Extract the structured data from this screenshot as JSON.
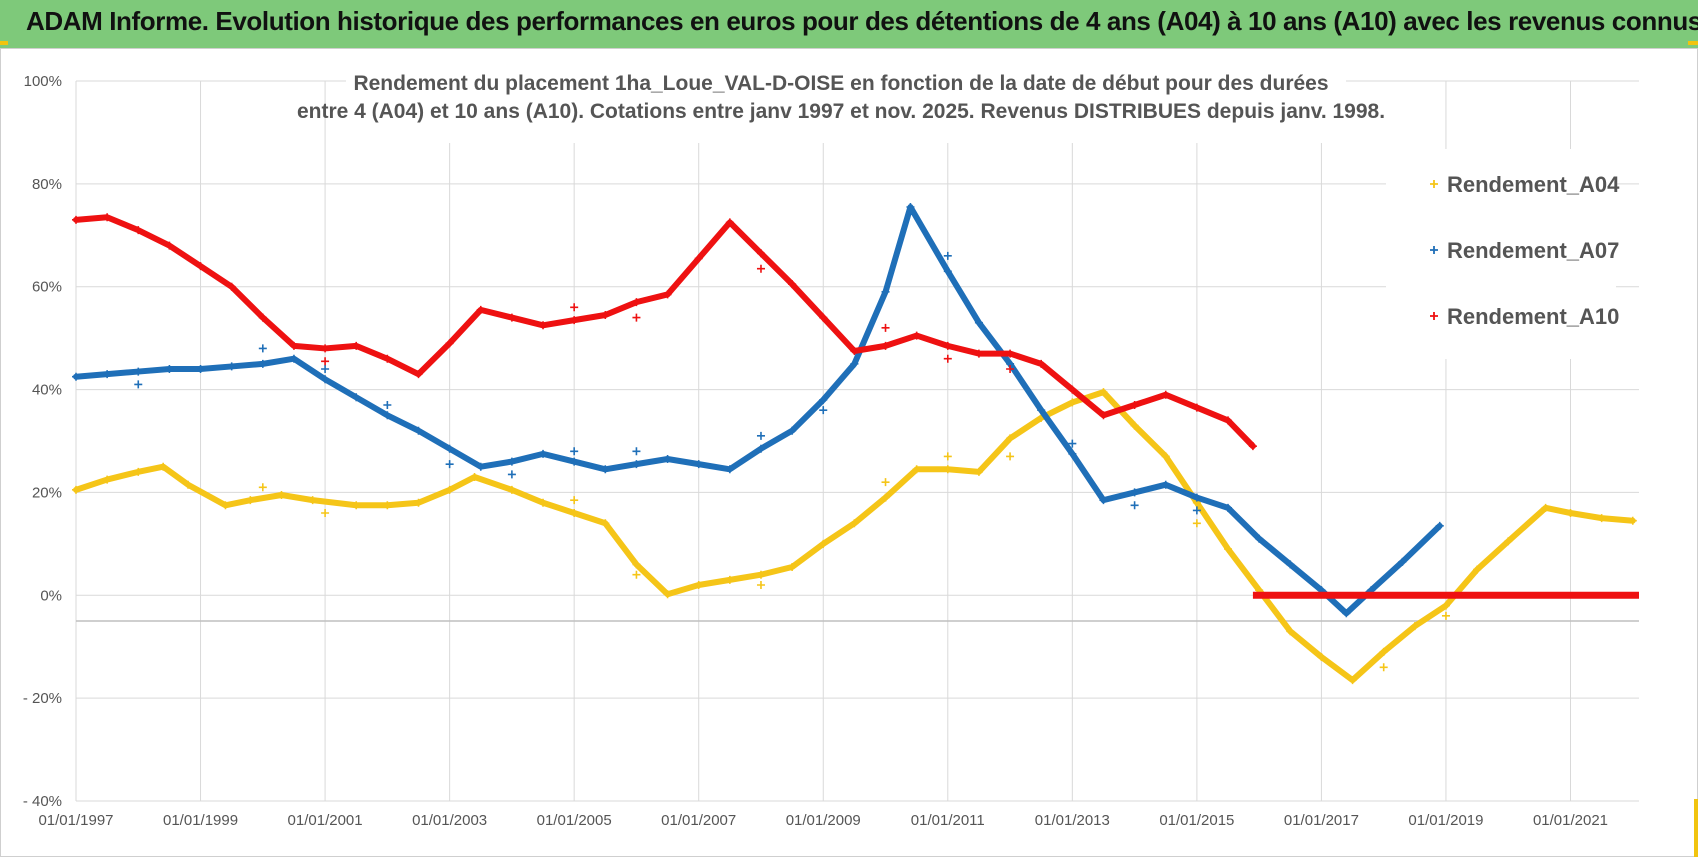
{
  "header": {
    "title": "ADAM Informe. Evolution historique des performances en euros pour des détentions de 4 ans (A04) à 10 ans (A10) avec les revenus connus distribués"
  },
  "colors": {
    "banner": "#7ec97a",
    "A04": "#f5c518",
    "A07": "#1f6fb8",
    "A10": "#ee1111",
    "grid": "#d9d9d9"
  },
  "chart_data": {
    "type": "scatter",
    "title_lines": [
      "Rendement du placement 1ha_Loue_VAL-D-OISE en fonction de la date de début pour des durées",
      "entre 4 (A04) et 10 ans (A10).  Cotations entre janv 1997 et nov. 2025. Revenus DISTRIBUES depuis janv. 1998."
    ],
    "xlabel": "",
    "ylabel": "",
    "x_ticks": [
      "01/01/1997",
      "01/01/1999",
      "01/01/2001",
      "01/01/2003",
      "01/01/2005",
      "01/01/2007",
      "01/01/2009",
      "01/01/2011",
      "01/01/2013",
      "01/01/2015",
      "01/01/2017",
      "01/01/2019",
      "01/01/2021"
    ],
    "y_ticks": [
      "100%",
      "80%",
      "60%",
      "40%",
      "20%",
      "0%",
      "- 20%",
      "- 40%"
    ],
    "xlim": [
      1997.0,
      2022.1
    ],
    "ylim": [
      -40,
      100
    ],
    "grid": true,
    "legend_position": "top-right",
    "series": [
      {
        "name": "Rendement_A04",
        "points": [
          [
            1997.0,
            20.5
          ],
          [
            1997.5,
            22.5
          ],
          [
            1998.0,
            24
          ],
          [
            1998.4,
            25
          ],
          [
            1998.8,
            21.5
          ],
          [
            1999.4,
            17.5
          ],
          [
            1999.8,
            18.5
          ],
          [
            2000.3,
            19.5
          ],
          [
            2000.8,
            18.5
          ],
          [
            2001.5,
            17.5
          ],
          [
            2002.0,
            17.5
          ],
          [
            2002.5,
            18.0
          ],
          [
            2003.0,
            20.5
          ],
          [
            2003.4,
            23.0
          ],
          [
            2004.0,
            20.5
          ],
          [
            2004.5,
            18.0
          ],
          [
            2005.0,
            16.0
          ],
          [
            2005.5,
            14.0
          ],
          [
            2006.0,
            6.0
          ],
          [
            2006.5,
            0.2
          ],
          [
            2007.0,
            2.0
          ],
          [
            2007.5,
            3.0
          ],
          [
            2008.0,
            4.0
          ],
          [
            2008.5,
            5.5
          ],
          [
            2009.0,
            10.0
          ],
          [
            2009.5,
            14.0
          ],
          [
            2010.0,
            19.0
          ],
          [
            2010.5,
            24.5
          ],
          [
            2011.0,
            24.5
          ],
          [
            2011.5,
            24.0
          ],
          [
            2012.0,
            30.5
          ],
          [
            2012.5,
            34.5
          ],
          [
            2013.0,
            37.5
          ],
          [
            2013.5,
            39.5
          ],
          [
            2014.0,
            33.0
          ],
          [
            2014.5,
            27.0
          ],
          [
            2015.0,
            18.0
          ],
          [
            2015.5,
            9.0
          ],
          [
            2016.0,
            1.0
          ],
          [
            2016.5,
            -7.0
          ],
          [
            2017.0,
            -12.0
          ],
          [
            2017.5,
            -16.5
          ],
          [
            2018.0,
            -11.0
          ],
          [
            2018.5,
            -6.0
          ],
          [
            2019.0,
            -2.0
          ],
          [
            2019.5,
            5.0
          ],
          [
            2020.0,
            10.5
          ],
          [
            2020.6,
            17.0
          ],
          [
            2021.0,
            16.0
          ],
          [
            2021.5,
            15.0
          ],
          [
            2022.0,
            14.5
          ]
        ],
        "outliers": [
          [
            2000.0,
            21
          ],
          [
            2001.0,
            16
          ],
          [
            2005.0,
            18.5
          ],
          [
            2006.0,
            4
          ],
          [
            2008.0,
            2
          ],
          [
            2010.0,
            22
          ],
          [
            2011.0,
            27
          ],
          [
            2012.0,
            27
          ],
          [
            2015.0,
            14
          ],
          [
            2018.0,
            -14
          ],
          [
            2019.0,
            -4
          ]
        ]
      },
      {
        "name": "Rendement_A07",
        "points": [
          [
            1997.0,
            42.5
          ],
          [
            1997.5,
            43.0
          ],
          [
            1998.0,
            43.5
          ],
          [
            1998.5,
            44.0
          ],
          [
            1999.0,
            44.0
          ],
          [
            1999.5,
            44.5
          ],
          [
            2000.0,
            45.0
          ],
          [
            2000.5,
            46.0
          ],
          [
            2001.0,
            42.0
          ],
          [
            2001.5,
            38.5
          ],
          [
            2002.0,
            35.0
          ],
          [
            2002.5,
            32.0
          ],
          [
            2003.0,
            28.5
          ],
          [
            2003.5,
            25.0
          ],
          [
            2004.0,
            26.0
          ],
          [
            2004.5,
            27.5
          ],
          [
            2005.0,
            26.0
          ],
          [
            2005.5,
            24.5
          ],
          [
            2006.0,
            25.5
          ],
          [
            2006.5,
            26.5
          ],
          [
            2007.0,
            25.5
          ],
          [
            2007.5,
            24.5
          ],
          [
            2008.0,
            28.5
          ],
          [
            2008.5,
            32.0
          ],
          [
            2009.0,
            38.0
          ],
          [
            2009.5,
            45.0
          ],
          [
            2010.0,
            59.0
          ],
          [
            2010.4,
            75.5
          ],
          [
            2011.0,
            63.0
          ],
          [
            2011.5,
            53.0
          ],
          [
            2012.0,
            45.0
          ],
          [
            2012.5,
            36.0
          ],
          [
            2013.0,
            27.5
          ],
          [
            2013.5,
            18.5
          ],
          [
            2014.0,
            20.0
          ],
          [
            2014.5,
            21.5
          ],
          [
            2015.0,
            19.0
          ],
          [
            2015.5,
            17.0
          ],
          [
            2016.0,
            11.0
          ],
          [
            2016.5,
            6.0
          ],
          [
            2017.0,
            1.0
          ],
          [
            2017.4,
            -3.5
          ],
          [
            2017.8,
            1.0
          ],
          [
            2018.3,
            6.5
          ],
          [
            2018.9,
            13.5
          ]
        ],
        "outliers": [
          [
            1998.0,
            41
          ],
          [
            2000.0,
            48
          ],
          [
            2001.0,
            44
          ],
          [
            2002.0,
            37
          ],
          [
            2003.0,
            25.5
          ],
          [
            2004.0,
            23.5
          ],
          [
            2005.0,
            28
          ],
          [
            2006.0,
            28
          ],
          [
            2008.0,
            31
          ],
          [
            2009.0,
            36
          ],
          [
            2011.0,
            66
          ],
          [
            2013.0,
            29.5
          ],
          [
            2014.0,
            17.5
          ],
          [
            2015.0,
            16.5
          ]
        ]
      },
      {
        "name": "Rendement_A10",
        "points": [
          [
            1997.0,
            73.0
          ],
          [
            1997.5,
            73.5
          ],
          [
            1998.0,
            71.0
          ],
          [
            1998.5,
            68.0
          ],
          [
            1999.0,
            64.0
          ],
          [
            1999.5,
            60.0
          ],
          [
            2000.0,
            54.0
          ],
          [
            2000.5,
            48.5
          ],
          [
            2001.0,
            48.0
          ],
          [
            2001.5,
            48.5
          ],
          [
            2002.0,
            46.0
          ],
          [
            2002.5,
            43.0
          ],
          [
            2003.0,
            49.0
          ],
          [
            2003.5,
            55.5
          ],
          [
            2004.0,
            54.0
          ],
          [
            2004.5,
            52.5
          ],
          [
            2005.0,
            53.5
          ],
          [
            2005.5,
            54.5
          ],
          [
            2006.0,
            57.0
          ],
          [
            2006.5,
            58.5
          ],
          [
            2007.0,
            65.5
          ],
          [
            2007.5,
            72.5
          ],
          [
            2008.0,
            66.5
          ],
          [
            2008.5,
            60.5
          ],
          [
            2009.0,
            54.0
          ],
          [
            2009.5,
            47.5
          ],
          [
            2010.0,
            48.5
          ],
          [
            2010.5,
            50.5
          ],
          [
            2011.0,
            48.5
          ],
          [
            2011.5,
            47.0
          ],
          [
            2012.0,
            47.0
          ],
          [
            2012.5,
            45.0
          ],
          [
            2013.0,
            40.0
          ],
          [
            2013.5,
            35.0
          ],
          [
            2014.0,
            37.0
          ],
          [
            2014.5,
            39.0
          ],
          [
            2015.0,
            36.5
          ],
          [
            2015.5,
            34.0
          ],
          [
            2015.9,
            29.0
          ]
        ],
        "flat": [
          [
            2015.9,
            0
          ],
          [
            2022.1,
            0
          ]
        ],
        "outliers": [
          [
            2001.0,
            45.5
          ],
          [
            2005.0,
            56
          ],
          [
            2006.0,
            54
          ],
          [
            2008.0,
            63.5
          ],
          [
            2010.0,
            52
          ],
          [
            2011.0,
            46
          ],
          [
            2012.0,
            44
          ]
        ]
      }
    ]
  }
}
